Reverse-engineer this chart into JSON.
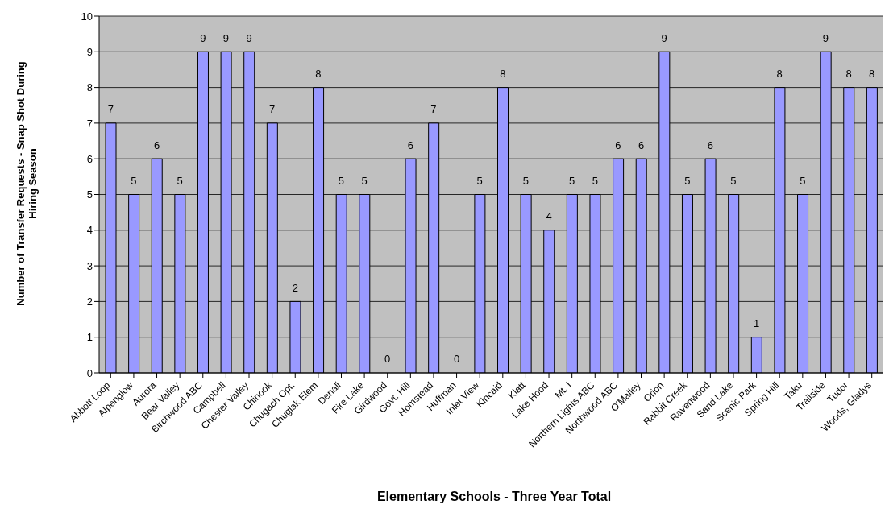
{
  "chart_data": {
    "type": "bar",
    "xlabel": "Elementary Schools - Three Year Total",
    "ylabel": "Number of Transfer Requests - Snap Shot During Hiring Season",
    "categories": [
      "Abbott Loop",
      "Alpenglow",
      "Aurora",
      "Bear Valley",
      "Birchwood ABC",
      "Campbell",
      "Chester Valley",
      "Chinook",
      "Chugach Opt.",
      "Chugiak Elem",
      "Denali",
      "Fire Lake",
      "Girdwood",
      "Govt. Hill",
      "Homstead",
      "Huffman",
      "Inlet View",
      "Kincaid",
      "Klatt",
      "Lake Hood",
      "Mt. I",
      "Northern Lights ABC",
      "Northwood ABC",
      "O'Malley",
      "Orion",
      "Rabbit Creek",
      "Ravenwood",
      "Sand Lake",
      "Scenic Park",
      "Spring Hill",
      "Taku",
      "Trailside",
      "Tudor",
      "Woods, Gladys"
    ],
    "values": [
      7,
      5,
      6,
      5,
      9,
      9,
      9,
      7,
      2,
      8,
      5,
      5,
      0,
      6,
      7,
      0,
      5,
      8,
      5,
      4,
      5,
      5,
      6,
      6,
      9,
      5,
      6,
      5,
      1,
      8,
      5,
      9,
      8,
      8
    ],
    "color": "#9999ff",
    "ylim": [
      0,
      10
    ],
    "yticks": [
      0,
      1,
      2,
      3,
      4,
      5,
      6,
      7,
      8,
      9,
      10
    ],
    "grid": "y",
    "data_labels": true,
    "legend": false
  }
}
